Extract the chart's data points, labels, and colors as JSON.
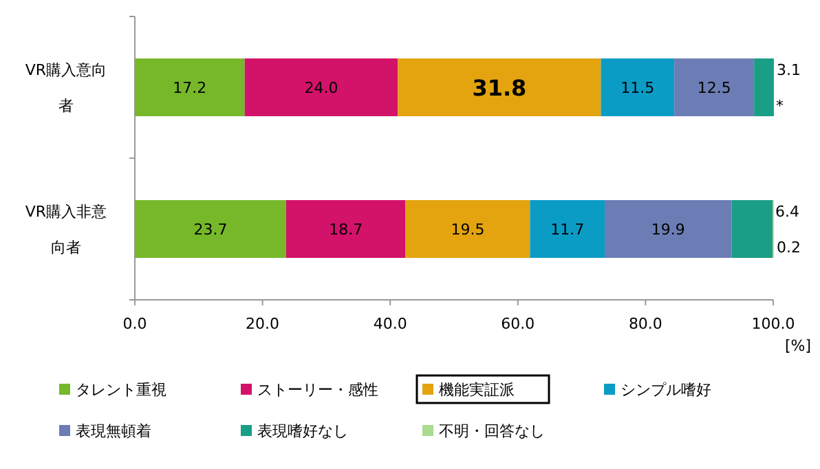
{
  "chart_data": {
    "type": "bar",
    "orientation": "horizontal",
    "stacked": true,
    "categories": [
      "VR購入意向者",
      "VR購入非意向者"
    ],
    "series": [
      {
        "name": "タレント重視",
        "color": "#76b82a",
        "values": [
          17.2,
          23.7
        ],
        "value_labels": [
          "17.2",
          "23.7"
        ]
      },
      {
        "name": "ストーリー・感性",
        "color": "#d3126a",
        "values": [
          24.0,
          18.7
        ],
        "value_labels": [
          "24.0",
          "18.7"
        ]
      },
      {
        "name": "機能実証派",
        "color": "#e3a40f",
        "values": [
          31.8,
          19.5
        ],
        "value_labels": [
          "31.8",
          "19.5"
        ]
      },
      {
        "name": "シンプル嗜好",
        "color": "#0b9cc6",
        "values": [
          11.5,
          11.7
        ],
        "value_labels": [
          "11.5",
          "11.7"
        ]
      },
      {
        "name": "表現無頓着",
        "color": "#6c7db5",
        "values": [
          12.5,
          19.9
        ],
        "value_labels": [
          "12.5",
          "19.9"
        ]
      },
      {
        "name": "表現嗜好なし",
        "color": "#1a9e86",
        "values": [
          3.1,
          6.4
        ],
        "value_labels": [
          "3.1",
          "6.4"
        ]
      },
      {
        "name": "不明・回答なし",
        "color": "#a9dc8e",
        "values": [
          null,
          0.2
        ],
        "value_labels": [
          null,
          "0.2"
        ]
      }
    ],
    "annotations": [
      {
        "text": "*",
        "x": 100,
        "y": "VR購入意向者"
      }
    ],
    "xlim": [
      0,
      100
    ],
    "xticks": [
      {
        "value": 0,
        "label": "0.0"
      },
      {
        "value": 20,
        "label": "20.0"
      },
      {
        "value": 40,
        "label": "40.0"
      },
      {
        "value": 60,
        "label": "60.0"
      },
      {
        "value": 80,
        "label": "80.0"
      },
      {
        "value": 100,
        "label": "100.0"
      }
    ],
    "xlabel": "[%]",
    "legend": "bottom"
  }
}
